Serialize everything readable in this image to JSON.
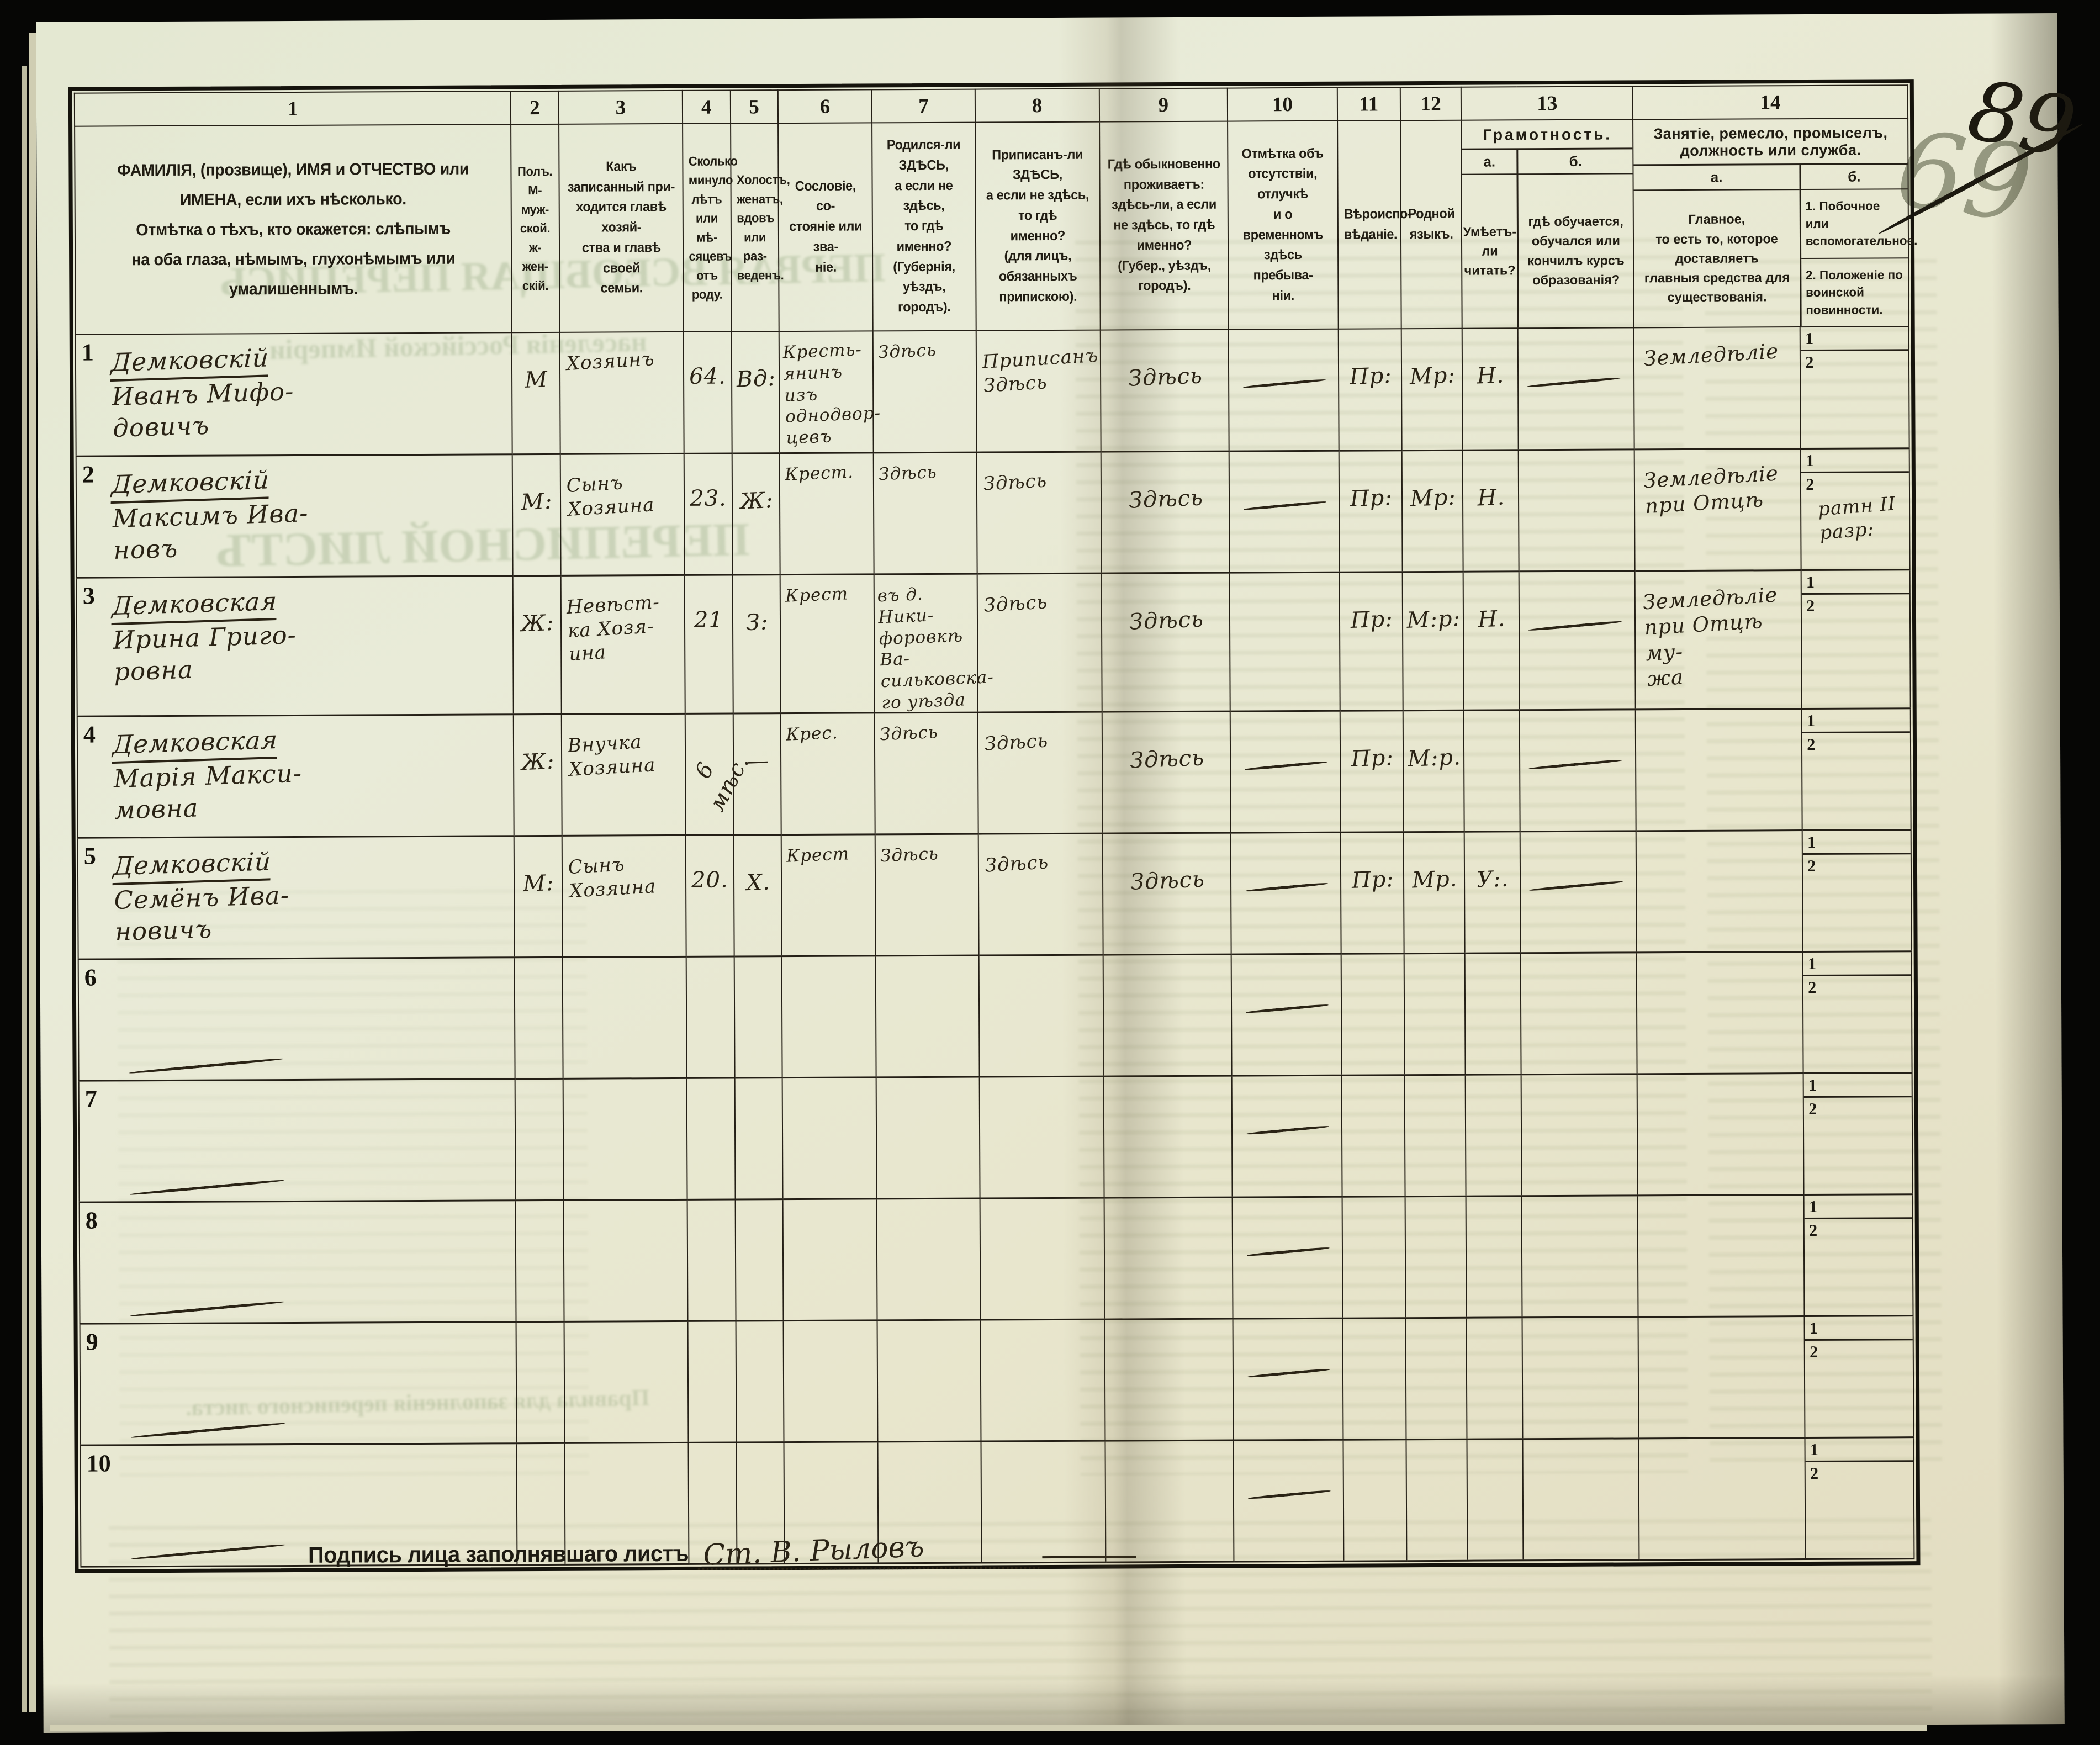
{
  "page": {
    "number": "89",
    "crossed_out_number": "69"
  },
  "header": {
    "columns": [
      {
        "num": "1",
        "text": "ФАМИЛІЯ, (прозвище), ИМЯ и ОТЧЕСТВО или\nИМЕНА, если ихъ нѣсколько.\nОтмѣтка о тѣхъ, кто окажется: слѣпымъ\nна оба глаза, нѣмымъ, глухонѣмымъ или\nумалишеннымъ."
      },
      {
        "num": "2",
        "text": "Полъ.\nМ-муж-\nской.\nж-жен-\nскій."
      },
      {
        "num": "3",
        "text": "Какъ записанный при-\nходится главѣ хозяй-\nства и главѣ своей\nсемьи."
      },
      {
        "num": "4",
        "text": "Сколько\nминуло\nлѣтъ\nили мѣ-\nсяцевъ\nотъ роду."
      },
      {
        "num": "5",
        "text": "Холостъ,\nженатъ,\nвдовъ\nили раз-\nведенъ."
      },
      {
        "num": "6",
        "text": "Сословіе, со-\nстояніе или зва-\nніе."
      },
      {
        "num": "7",
        "text": "Родился-ли ЗДѢСЬ,\nа если не здѣсь,\nто гдѣ именно?\n(Губернія, уѣздъ, городъ)."
      },
      {
        "num": "8",
        "text": "Приписанъ-ли ЗДѢСЬ,\nа если не здѣсь, то гдѣ\nименно?\n(для лицъ, обязанныхъ\nприпискою)."
      },
      {
        "num": "9",
        "text": "Гдѣ обыкновенно\nпроживаетъ:\nздѣсь-ли, а если\nне здѣсь, то гдѣ\nименно?\n(Губер., уѣздъ, городъ)."
      },
      {
        "num": "10",
        "text": "Отмѣтка объ\nотсутствіи, отлучкѣ\nи о временномъ\nздѣсь пребыва-\nніи."
      },
      {
        "num": "11",
        "text": "Вѣроиспо-\nвѣданіе."
      },
      {
        "num": "12",
        "text": "Родной\nязыкъ."
      }
    ],
    "col13": {
      "num": "13",
      "title": "Грамотность.",
      "a_label": "а.",
      "b_label": "б.",
      "a_text": "Умѣетъ-\nли\nчитать?",
      "b_text": "гдѣ обучается,\nобучался или\nкончилъ курсъ\nобразованія?"
    },
    "col14": {
      "num": "14",
      "title": "Занятіе, ремесло, промыселъ, должность или служба.",
      "a_label": "а.",
      "b_label": "б.",
      "a_text": "Главное,\nто есть то, которое доставляетъ\nглавныя средства для существованія.",
      "b_item1": "1.  Побочное или вспомогательноe.",
      "b_item2": "2.  Положеніе по воинской повинности.",
      "sub1": "1",
      "sub2": "2"
    }
  },
  "rows": [
    {
      "num": "1",
      "surname": "Демковскій",
      "name_rest": "Иванъ Мифо-\nдовичъ",
      "sex": "М",
      "relation": "Хозяинъ",
      "age": "64.",
      "age_rotated": false,
      "marital": "Вд:",
      "estate": "Кресть-\nянинъ изъ\nоднодвор-\nцевъ",
      "born": "Здѣсь",
      "registered": "Приписанъ\nЗдѣсь",
      "resides": "Здѣсь",
      "absence_dash": true,
      "religion": "Пр:",
      "language": "Мр:",
      "literacy_a": "Н.",
      "literacy_b_dash": true,
      "occupation_a": "Земледѣліе",
      "occupation_b1": "",
      "occupation_b2": "",
      "col1_dash": false
    },
    {
      "num": "2",
      "surname": "Демковскій",
      "name_rest": "Максимъ Ива-\nновъ",
      "sex": "М:",
      "relation": "Сынъ\nХозяина",
      "age": "23.",
      "age_rotated": false,
      "marital": "Ж:",
      "estate": "Крест.",
      "born": "Здѣсь",
      "registered": "Здѣсь",
      "resides": "Здѣсь",
      "absence_dash": true,
      "religion": "Пр:",
      "language": "Мр:",
      "literacy_a": "Н.",
      "literacy_b_dash": false,
      "occupation_a": "Земледѣліе\nпри Отцѣ",
      "occupation_b1": "",
      "occupation_b2": "ратн II разр:",
      "col1_dash": false
    },
    {
      "num": "3",
      "surname": "Демковская",
      "name_rest": "Ирина Григо-\nровна",
      "sex": "Ж:",
      "relation": "Невѣст-\nка Хозя-\nина",
      "age": "21",
      "age_rotated": false,
      "marital": "З:",
      "estate": "Крест",
      "born": "въ д. Ники-\nфоровкѣ Ва-\nсильковска-\nго уѣзда",
      "registered": "Здѣсь",
      "resides": "Здѣсь",
      "absence_dash": false,
      "religion": "Пр:",
      "language": "М:р:",
      "literacy_a": "Н.",
      "literacy_b_dash": true,
      "occupation_a": "Земледѣліе\nпри Отцѣ му-\nжа",
      "occupation_b1": "",
      "occupation_b2": "",
      "col1_dash": false
    },
    {
      "num": "4",
      "surname": "Демковская",
      "name_rest": "Марія Макси-\nмовна",
      "sex": "Ж:",
      "relation": "Внучка\nХозяина",
      "age": "6 мѣс.",
      "age_rotated": true,
      "marital": "—",
      "estate": "Крес.",
      "born": "Здѣсь",
      "registered": "Здѣсь",
      "resides": "Здѣсь",
      "absence_dash": true,
      "religion": "Пр:",
      "language": "М:р.",
      "literacy_a": "",
      "literacy_b_dash": true,
      "occupation_a": "",
      "occupation_b1": "",
      "occupation_b2": "",
      "col1_dash": false
    },
    {
      "num": "5",
      "surname": "Демковскій",
      "name_rest": "Семёнъ Ива-\nновичъ",
      "sex": "М:",
      "relation": "Сынъ\nХозяина",
      "age": "20.",
      "age_rotated": false,
      "marital": "Х.",
      "estate": "Крест",
      "born": "Здѣсь",
      "registered": "Здѣсь",
      "resides": "Здѣсь",
      "absence_dash": true,
      "religion": "Пр:",
      "language": "Мр.",
      "literacy_a": "У:.",
      "literacy_b_dash": true,
      "occupation_a": "",
      "occupation_b1": "",
      "occupation_b2": "",
      "col1_dash": false
    },
    {
      "num": "6",
      "surname": "",
      "name_rest": "",
      "sex": "",
      "relation": "",
      "age": "",
      "age_rotated": false,
      "marital": "",
      "estate": "",
      "born": "",
      "registered": "",
      "resides": "",
      "absence_dash": true,
      "religion": "",
      "language": "",
      "literacy_a": "",
      "literacy_b_dash": false,
      "occupation_a": "",
      "occupation_b1": "",
      "occupation_b2": "",
      "col1_dash": true
    },
    {
      "num": "7",
      "surname": "",
      "name_rest": "",
      "sex": "",
      "relation": "",
      "age": "",
      "age_rotated": false,
      "marital": "",
      "estate": "",
      "born": "",
      "registered": "",
      "resides": "",
      "absence_dash": true,
      "religion": "",
      "language": "",
      "literacy_a": "",
      "literacy_b_dash": false,
      "occupation_a": "",
      "occupation_b1": "",
      "occupation_b2": "",
      "col1_dash": true
    },
    {
      "num": "8",
      "surname": "",
      "name_rest": "",
      "sex": "",
      "relation": "",
      "age": "",
      "age_rotated": false,
      "marital": "",
      "estate": "",
      "born": "",
      "registered": "",
      "resides": "",
      "absence_dash": true,
      "religion": "",
      "language": "",
      "literacy_a": "",
      "literacy_b_dash": false,
      "occupation_a": "",
      "occupation_b1": "",
      "occupation_b2": "",
      "col1_dash": true
    },
    {
      "num": "9",
      "surname": "",
      "name_rest": "",
      "sex": "",
      "relation": "",
      "age": "",
      "age_rotated": false,
      "marital": "",
      "estate": "",
      "born": "",
      "registered": "",
      "resides": "",
      "absence_dash": true,
      "religion": "",
      "language": "",
      "literacy_a": "",
      "literacy_b_dash": false,
      "occupation_a": "",
      "occupation_b1": "",
      "occupation_b2": "",
      "col1_dash": true
    },
    {
      "num": "10",
      "surname": "",
      "name_rest": "",
      "sex": "",
      "relation": "",
      "age": "",
      "age_rotated": false,
      "marital": "",
      "estate": "",
      "born": "",
      "registered": "",
      "resides": "",
      "absence_dash": true,
      "religion": "",
      "language": "",
      "literacy_a": "",
      "literacy_b_dash": false,
      "occupation_a": "",
      "occupation_b1": "",
      "occupation_b2": "",
      "col1_dash": true
    }
  ],
  "ghost": {
    "line1": "ПЕРВАЯ ВСЕОБЩАЯ ПЕРЕПИСЬ",
    "line2": "населенія Россійской Имперіи",
    "line3": "ПЕРЕПИСНОЙ ЛИСТЪ",
    "line4": "Правила для заполненія переписного листа."
  },
  "footer": {
    "signature_label": "Подпись лица заполнявшаго листъ",
    "signature": "Ст. В. Рыловъ"
  }
}
